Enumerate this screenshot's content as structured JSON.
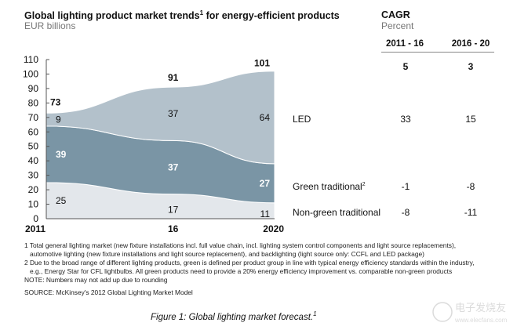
{
  "chart_data": {
    "type": "area",
    "title": "Global lighting product market trends",
    "title_sup": "1",
    "title_rest": " for energy-efficient products",
    "ylabel": "EUR billions",
    "x": [
      2011,
      2016,
      2020
    ],
    "x_tick_labels": [
      "2011",
      "16",
      "2020"
    ],
    "ylim": [
      0,
      110
    ],
    "y_ticks": [
      0,
      10,
      20,
      30,
      40,
      50,
      60,
      70,
      80,
      90,
      100,
      110
    ],
    "stacked": true,
    "grid": false,
    "totals": [
      73,
      91,
      101
    ],
    "series": [
      {
        "name": "Non-green traditional",
        "values": [
          25,
          17,
          11
        ],
        "color": "#e3e7eb",
        "label_color": "#111111"
      },
      {
        "name": "Green traditional",
        "name_sup": "2",
        "values": [
          39,
          37,
          27
        ],
        "color": "#7a95a5",
        "label_color": "#ffffff"
      },
      {
        "name": "LED",
        "values": [
          9,
          37,
          64
        ],
        "color": "#b3c1cb",
        "label_color": "#111111"
      }
    ],
    "cagr": {
      "title": "CAGR",
      "unit": "Percent",
      "periods": [
        "2011 - 16",
        "2016 - 20"
      ],
      "total": [
        "5",
        "3"
      ],
      "LED": [
        "33",
        "15"
      ],
      "Green traditional": [
        "-1",
        "-8"
      ],
      "Non-green traditional": [
        "-8",
        "-11"
      ]
    }
  },
  "footnotes": [
    "1 Total general lighting market (new fixture installations incl. full value chain, incl. lighting system control components and light source replacements),",
    "automotive lighting (new fixture installations and light source replacement), and backlighting (light source only: CCFL and LED package)",
    "2 Due to the broad range of different lighting products, green is defined per product group in line with typical energy efficiency standards within the industry,",
    "e.g., Energy Star for CFL lightbulbs. All green products need to provide a 20% energy efficiency improvement vs. comparable non-green products",
    "NOTE: Numbers may not add up due to rounding"
  ],
  "source": "SOURCE: McKinsey's 2012 Global Lighting Market Model",
  "caption": "Figure 1: Global lighting market forecast.",
  "caption_sup": "1",
  "watermark": "电子发烧友 www.elecfans.com"
}
